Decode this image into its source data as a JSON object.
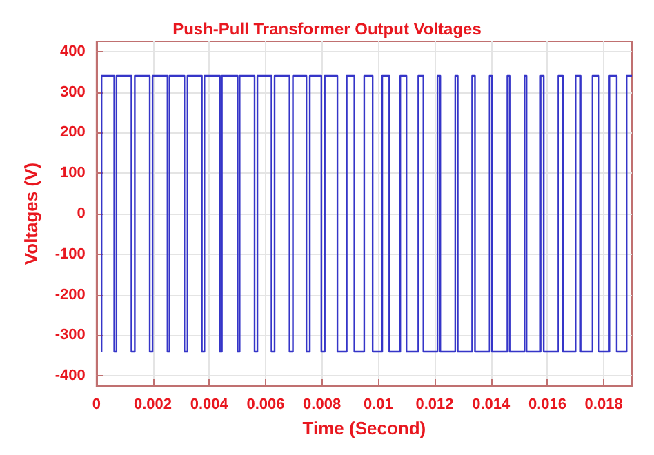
{
  "chart_data": {
    "type": "line",
    "title": "Push-Pull Transformer Output Voltages",
    "xlabel": "Time (Second)",
    "ylabel": "Voltages (V)",
    "x": [
      0.00018,
      0.00018,
      0.00063,
      0.00063,
      0.00071,
      0.00071,
      0.00124,
      0.00124,
      0.00136,
      0.00136,
      0.00189,
      0.00189,
      0.00199,
      0.00199,
      0.00252,
      0.00252,
      0.00259,
      0.00259,
      0.00312,
      0.00312,
      0.00323,
      0.00323,
      0.00374,
      0.00374,
      0.00383,
      0.00383,
      0.00438,
      0.00438,
      0.00445,
      0.00445,
      0.00501,
      0.00501,
      0.00508,
      0.00508,
      0.00561,
      0.00561,
      0.00571,
      0.00571,
      0.00621,
      0.00621,
      0.00632,
      0.00632,
      0.00685,
      0.00685,
      0.00697,
      0.00697,
      0.00745,
      0.00745,
      0.00757,
      0.00757,
      0.00798,
      0.00798,
      0.0081,
      0.0081,
      0.00855,
      0.00855,
      0.00888,
      0.00888,
      0.00915,
      0.00915,
      0.0095,
      0.0095,
      0.0098,
      0.0098,
      0.01014,
      0.01014,
      0.01039,
      0.01039,
      0.01078,
      0.01078,
      0.011,
      0.011,
      0.01142,
      0.01142,
      0.0116,
      0.0116,
      0.0121,
      0.0121,
      0.0122,
      0.0122,
      0.01273,
      0.01273,
      0.01282,
      0.01282,
      0.01333,
      0.01333,
      0.01343,
      0.01343,
      0.01395,
      0.01395,
      0.01403,
      0.01403,
      0.01458,
      0.01458,
      0.01466,
      0.01466,
      0.01519,
      0.01519,
      0.01526,
      0.01526,
      0.01576,
      0.01576,
      0.01587,
      0.01587,
      0.01639,
      0.01639,
      0.01655,
      0.01655,
      0.017,
      0.017,
      0.01718,
      0.01718,
      0.0176,
      0.0176,
      0.01783,
      0.01783,
      0.0182,
      0.0182,
      0.01846,
      0.01846,
      0.01881,
      0.01881,
      0.019
    ],
    "series": [
      {
        "color": "#3535c8",
        "values": [
          -340,
          340,
          340,
          -340,
          -340,
          340,
          340,
          -340,
          -340,
          340,
          340,
          -340,
          -340,
          340,
          340,
          -340,
          -340,
          340,
          340,
          -340,
          -340,
          340,
          340,
          -340,
          -340,
          340,
          340,
          -340,
          -340,
          340,
          340,
          -340,
          -340,
          340,
          340,
          -340,
          -340,
          340,
          340,
          -340,
          -340,
          340,
          340,
          -340,
          -340,
          340,
          340,
          -340,
          -340,
          340,
          340,
          -340,
          -340,
          340,
          340,
          -340,
          -340,
          340,
          340,
          -340,
          -340,
          340,
          340,
          -340,
          -340,
          340,
          340,
          -340,
          -340,
          340,
          340,
          -340,
          -340,
          340,
          340,
          -340,
          -340,
          340,
          340,
          -340,
          -340,
          340,
          340,
          -340,
          -340,
          340,
          340,
          -340,
          -340,
          340,
          340,
          -340,
          -340,
          340,
          340,
          -340,
          -340,
          340,
          340,
          -340,
          -340,
          340,
          340,
          -340,
          -340,
          340,
          340,
          -340,
          -340,
          340,
          340,
          -340,
          -340,
          340,
          340,
          -340,
          -340,
          340,
          340,
          -340,
          -340,
          340,
          340
        ]
      }
    ],
    "xlim": [
      0,
      0.019
    ],
    "xticks": [
      0,
      0.002,
      0.004,
      0.006,
      0.008,
      0.01,
      0.012,
      0.014,
      0.016,
      0.018
    ],
    "ylim": [
      -425,
      425
    ],
    "yticks": [
      -400,
      -300,
      -200,
      -100,
      0,
      100,
      200,
      300,
      400
    ],
    "grid": true,
    "marker": "none",
    "line_style": "solid"
  }
}
